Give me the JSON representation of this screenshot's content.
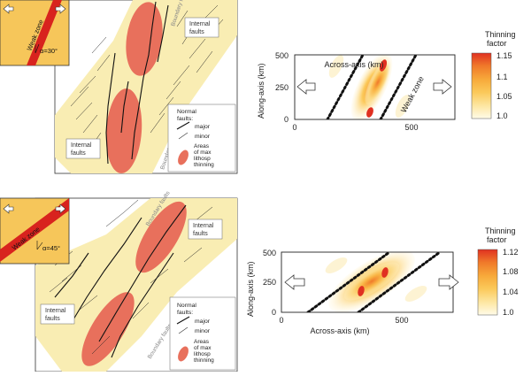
{
  "colors": {
    "weak_zone_red": "#d8231e",
    "inset_yellow": "#f6c65a",
    "map_cream": "#f9edb3",
    "thinning_red": "#e8705c",
    "colorbar_top_red": "#e03021",
    "colorbar_bottom": "#fffbe8"
  },
  "panel_top": {
    "inset": {
      "weak_zone_label": "Weak zone",
      "angle_label": "α=30°",
      "arrow_icons": [
        "left-arrow-icon",
        "right-arrow-icon"
      ]
    },
    "map": {
      "boundary_label_top": "Boundary faults",
      "boundary_label_bottom": "Boundary faults",
      "internal_faults_top": [
        "Internal",
        "faults"
      ],
      "internal_faults_bottom": [
        "Internal",
        "faults"
      ],
      "legend": {
        "title": [
          "Normal",
          "faults:"
        ],
        "major": "major",
        "minor": "minor",
        "areas": [
          "Areas",
          "of max",
          "lithosp",
          "thinning"
        ]
      }
    },
    "model": {
      "ylabel": "Along-axis (km)",
      "xlabel": "Across-axis (km)",
      "y_ticks": [
        "500",
        "250",
        "0"
      ],
      "x_ticks": [
        "0",
        "500"
      ],
      "weak_zone_label": "Weak zone",
      "colorbar": {
        "title": [
          "Thinning",
          "factor"
        ],
        "ticks": [
          "1.15",
          "1.1",
          "1.05",
          "1.0"
        ]
      }
    }
  },
  "panel_bottom": {
    "inset": {
      "weak_zone_label": "Weak zone",
      "angle_label": "α=45°",
      "arrow_icons": [
        "left-arrow-icon",
        "right-arrow-icon"
      ]
    },
    "map": {
      "boundary_label_top": "Boundary faults",
      "boundary_label_bottom": "Boundary faults",
      "internal_faults_top": [
        "Internal",
        "faults"
      ],
      "internal_faults_bottom": [
        "Internal",
        "faults"
      ],
      "legend": {
        "title": [
          "Normal",
          "faults:"
        ],
        "major": "major",
        "minor": "minor",
        "areas": [
          "Areas",
          "of max",
          "lithosp",
          "thinning"
        ]
      }
    },
    "model": {
      "ylabel": "Along-axis (km)",
      "xlabel": "Across-axis (km)",
      "y_ticks": [
        "500",
        "250",
        "0"
      ],
      "x_ticks": [
        "0",
        "500"
      ],
      "colorbar": {
        "title": [
          "Thinning",
          "factor"
        ],
        "ticks": [
          "1.12",
          "1.08",
          "1.04",
          "1.0"
        ]
      }
    }
  }
}
